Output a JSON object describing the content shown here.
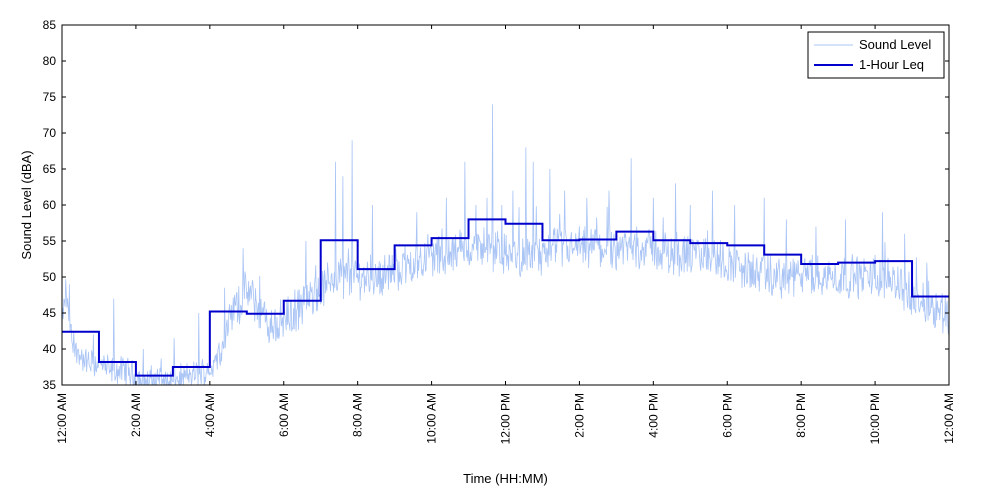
{
  "chart_data": {
    "type": "line",
    "xlabel": "Time (HH:MM)",
    "ylabel": "Sound Level (dBA)",
    "xlim": [
      0,
      24
    ],
    "ylim": [
      35,
      85
    ],
    "y_ticks": [
      35,
      40,
      45,
      50,
      55,
      60,
      65,
      70,
      75,
      80,
      85
    ],
    "x_ticks": [
      0,
      2,
      4,
      6,
      8,
      10,
      12,
      14,
      16,
      18,
      20,
      22,
      24
    ],
    "x_tick_labels": [
      "12:00 AM",
      "2:00 AM",
      "4:00 AM",
      "6:00 AM",
      "8:00 AM",
      "10:00 AM",
      "12:00 PM",
      "2:00 PM",
      "4:00 PM",
      "6:00 PM",
      "8:00 PM",
      "10:00 PM",
      "12:00 AM"
    ],
    "grid": "horizontal",
    "legend_position": "top-right",
    "colors": {
      "sound_level": "#a9c4f5",
      "leq": "#0000cc"
    },
    "series": [
      {
        "name": "Sound Level",
        "style": "thin-light-noisy",
        "hours": [
          0.0,
          0.1,
          0.2,
          0.3,
          0.5,
          0.7,
          1.0,
          1.3,
          1.5,
          1.8,
          2.0,
          2.3,
          2.6,
          3.0,
          3.3,
          3.6,
          4.0,
          4.3,
          4.6,
          5.0,
          5.3,
          5.6,
          6.0,
          6.5,
          7.0,
          7.3,
          7.6,
          8.0,
          8.5,
          9.0,
          9.5,
          10.0,
          10.5,
          11.0,
          11.5,
          12.0,
          12.5,
          13.0,
          13.5,
          14.0,
          14.5,
          15.0,
          15.5,
          16.0,
          16.5,
          17.0,
          17.5,
          18.0,
          18.5,
          19.0,
          19.5,
          20.0,
          20.5,
          21.0,
          21.5,
          22.0,
          22.5,
          23.0,
          23.5,
          24.0
        ],
        "levels": [
          43,
          48,
          44,
          40,
          39,
          38,
          38,
          37,
          37,
          37,
          36,
          35.5,
          36,
          35.5,
          36,
          36.5,
          37,
          40,
          45,
          48,
          46,
          43,
          44,
          46,
          48,
          50,
          50,
          50,
          50,
          51,
          52,
          53,
          53,
          54,
          54,
          53,
          53,
          53,
          54,
          54,
          54,
          54,
          54,
          54,
          53,
          53,
          53,
          52,
          51,
          50,
          50,
          50,
          50,
          50,
          50,
          50,
          50,
          47,
          46,
          45
        ],
        "peaks": [
          [
            0.2,
            49
          ],
          [
            1.4,
            47
          ],
          [
            2.2,
            40
          ],
          [
            3.7,
            45
          ],
          [
            4.4,
            48.5
          ],
          [
            4.9,
            54
          ],
          [
            6.6,
            55
          ],
          [
            7.4,
            66
          ],
          [
            7.6,
            64
          ],
          [
            7.85,
            69
          ],
          [
            8.4,
            60
          ],
          [
            9.6,
            59
          ],
          [
            10.4,
            61
          ],
          [
            10.9,
            66
          ],
          [
            11.2,
            60
          ],
          [
            11.5,
            61
          ],
          [
            11.65,
            74
          ],
          [
            11.9,
            60
          ],
          [
            12.2,
            62
          ],
          [
            12.55,
            68
          ],
          [
            12.75,
            66
          ],
          [
            13.2,
            65
          ],
          [
            13.6,
            62
          ],
          [
            14.2,
            61
          ],
          [
            14.8,
            62
          ],
          [
            15.4,
            66.5
          ],
          [
            16.0,
            61
          ],
          [
            16.6,
            63
          ],
          [
            17.0,
            60
          ],
          [
            17.6,
            62
          ],
          [
            18.2,
            60
          ],
          [
            19.0,
            61
          ],
          [
            19.6,
            58
          ],
          [
            20.4,
            57
          ],
          [
            21.2,
            58
          ],
          [
            22.2,
            59
          ],
          [
            22.8,
            56
          ],
          [
            23.4,
            52
          ]
        ]
      },
      {
        "name": "1-Hour Leq",
        "style": "step",
        "hour_starts": [
          0,
          1,
          2,
          3,
          4,
          5,
          6,
          7,
          8,
          9,
          10,
          11,
          12,
          13,
          14,
          15,
          16,
          17,
          18,
          19,
          20,
          21,
          22,
          23
        ],
        "values": [
          42.4,
          38.2,
          36.3,
          37.5,
          45.2,
          44.9,
          46.7,
          55.1,
          51.1,
          54.4,
          55.4,
          58.0,
          57.4,
          55.1,
          55.2,
          56.3,
          55.1,
          54.7,
          54.4,
          53.1,
          51.8,
          52.0,
          52.2,
          47.3
        ]
      }
    ]
  }
}
